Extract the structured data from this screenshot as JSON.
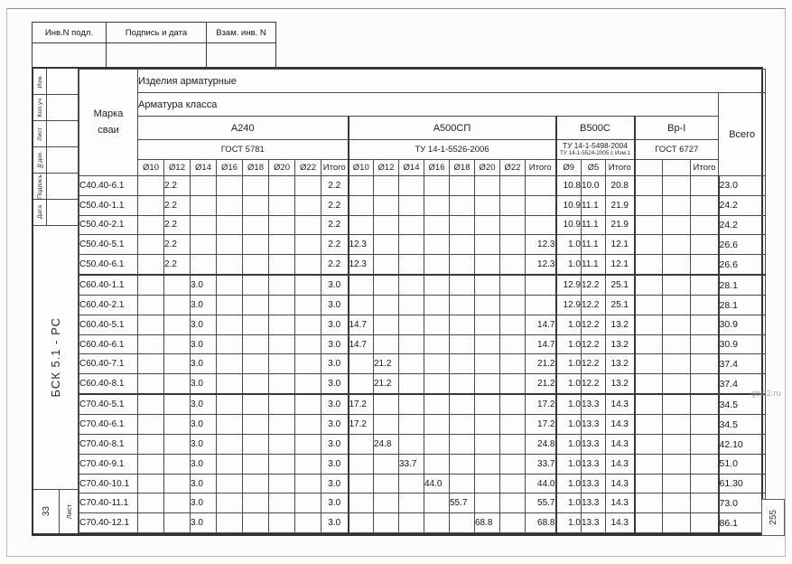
{
  "stamp": {
    "cells": [
      "Инв.N подл.",
      "Подпись и дата",
      "Взам. инв. N"
    ]
  },
  "side_stamp": {
    "labels": [
      "Изм.",
      "Кол.уч",
      "Лист",
      "№док.",
      "Подпись",
      "Дата"
    ],
    "doc_code": "БСК 5.1 - РС",
    "sheet_number": "33",
    "sheet_label": "Лист"
  },
  "page_number": "255",
  "watermark": "gbi22.ru",
  "table": {
    "mark_header_line1": "Марка",
    "mark_header_line2": "сваи",
    "products_header": "Изделия арматурные",
    "class_header": "Арматура класса",
    "total_header": "Всего",
    "groups": [
      {
        "name": "А240",
        "standard": "ГОСТ 5781",
        "standard2": "",
        "cols": [
          "Ø10",
          "Ø12",
          "Ø14",
          "Ø16",
          "Ø18",
          "Ø20",
          "Ø22",
          "Итого"
        ]
      },
      {
        "name": "А500СП",
        "standard": "ТУ 14-1-5526-2006",
        "standard2": "",
        "cols": [
          "Ø10",
          "Ø12",
          "Ø14",
          "Ø16",
          "Ø18",
          "Ø20",
          "Ø22",
          "Итого"
        ]
      },
      {
        "name": "В500С",
        "standard": "ТУ 14-1-5498-2004",
        "standard2": "ТУ 14-1-5524-2005 с Изм.1",
        "cols": [
          "Ø9",
          "Ø5",
          "Итого"
        ]
      },
      {
        "name": "Вр-I",
        "standard": "ГОСТ 6727",
        "standard2": "",
        "cols": [
          "",
          "",
          "Итого"
        ]
      }
    ],
    "thick_after_rows": [
      4,
      10
    ],
    "rows": [
      {
        "mark": "С40.40-6.1",
        "a240": [
          "",
          "2.2",
          "",
          "",
          "",
          "",
          "",
          "2.2"
        ],
        "a500": [
          "",
          "",
          "",
          "",
          "",
          "",
          "",
          ""
        ],
        "b500": [
          "10.8",
          "10.0",
          "20.8"
        ],
        "bp1": [
          "",
          "",
          ""
        ],
        "total": "23.0"
      },
      {
        "mark": "С50.40-1.1",
        "a240": [
          "",
          "2.2",
          "",
          "",
          "",
          "",
          "",
          "2.2"
        ],
        "a500": [
          "",
          "",
          "",
          "",
          "",
          "",
          "",
          ""
        ],
        "b500": [
          "10.9",
          "11.1",
          "21.9"
        ],
        "bp1": [
          "",
          "",
          ""
        ],
        "total": "24.2"
      },
      {
        "mark": "С50.40-2.1",
        "a240": [
          "",
          "2.2",
          "",
          "",
          "",
          "",
          "",
          "2.2"
        ],
        "a500": [
          "",
          "",
          "",
          "",
          "",
          "",
          "",
          ""
        ],
        "b500": [
          "10.9",
          "11.1",
          "21.9"
        ],
        "bp1": [
          "",
          "",
          ""
        ],
        "total": "24.2"
      },
      {
        "mark": "С50.40-5.1",
        "a240": [
          "",
          "2.2",
          "",
          "",
          "",
          "",
          "",
          "2.2"
        ],
        "a500": [
          "12.3",
          "",
          "",
          "",
          "",
          "",
          "",
          "12.3"
        ],
        "b500": [
          "1.0",
          "11.1",
          "12.1"
        ],
        "bp1": [
          "",
          "",
          ""
        ],
        "total": "26.6"
      },
      {
        "mark": "С50.40-6.1",
        "a240": [
          "",
          "2.2",
          "",
          "",
          "",
          "",
          "",
          "2.2"
        ],
        "a500": [
          "12.3",
          "",
          "",
          "",
          "",
          "",
          "",
          "12.3"
        ],
        "b500": [
          "1.0",
          "11.1",
          "12.1"
        ],
        "bp1": [
          "",
          "",
          ""
        ],
        "total": "26.6"
      },
      {
        "mark": "С60.40-1.1",
        "a240": [
          "",
          "",
          "3.0",
          "",
          "",
          "",
          "",
          "3.0"
        ],
        "a500": [
          "",
          "",
          "",
          "",
          "",
          "",
          "",
          ""
        ],
        "b500": [
          "12.9",
          "12.2",
          "25.1"
        ],
        "bp1": [
          "",
          "",
          ""
        ],
        "total": "28.1"
      },
      {
        "mark": "С60.40-2.1",
        "a240": [
          "",
          "",
          "3.0",
          "",
          "",
          "",
          "",
          "3.0"
        ],
        "a500": [
          "",
          "",
          "",
          "",
          "",
          "",
          "",
          ""
        ],
        "b500": [
          "12.9",
          "12.2",
          "25.1"
        ],
        "bp1": [
          "",
          "",
          ""
        ],
        "total": "28.1"
      },
      {
        "mark": "С60.40-5.1",
        "a240": [
          "",
          "",
          "3.0",
          "",
          "",
          "",
          "",
          "3.0"
        ],
        "a500": [
          "14.7",
          "",
          "",
          "",
          "",
          "",
          "",
          "14.7"
        ],
        "b500": [
          "1.0",
          "12.2",
          "13.2"
        ],
        "bp1": [
          "",
          "",
          ""
        ],
        "total": "30.9"
      },
      {
        "mark": "С60.40-6.1",
        "a240": [
          "",
          "",
          "3.0",
          "",
          "",
          "",
          "",
          "3.0"
        ],
        "a500": [
          "14.7",
          "",
          "",
          "",
          "",
          "",
          "",
          "14.7"
        ],
        "b500": [
          "1.0",
          "12.2",
          "13.2"
        ],
        "bp1": [
          "",
          "",
          ""
        ],
        "total": "30.9"
      },
      {
        "mark": "С60.40-7.1",
        "a240": [
          "",
          "",
          "3.0",
          "",
          "",
          "",
          "",
          "3.0"
        ],
        "a500": [
          "",
          "21.2",
          "",
          "",
          "",
          "",
          "",
          "21.2"
        ],
        "b500": [
          "1.0",
          "12.2",
          "13.2"
        ],
        "bp1": [
          "",
          "",
          ""
        ],
        "total": "37.4"
      },
      {
        "mark": "С60.40-8.1",
        "a240": [
          "",
          "",
          "3.0",
          "",
          "",
          "",
          "",
          "3.0"
        ],
        "a500": [
          "",
          "21.2",
          "",
          "",
          "",
          "",
          "",
          "21.2"
        ],
        "b500": [
          "1.0",
          "12.2",
          "13.2"
        ],
        "bp1": [
          "",
          "",
          ""
        ],
        "total": "37.4"
      },
      {
        "mark": "С70.40-5.1",
        "a240": [
          "",
          "",
          "3.0",
          "",
          "",
          "",
          "",
          "3.0"
        ],
        "a500": [
          "17.2",
          "",
          "",
          "",
          "",
          "",
          "",
          "17.2"
        ],
        "b500": [
          "1.0",
          "13.3",
          "14.3"
        ],
        "bp1": [
          "",
          "",
          ""
        ],
        "total": "34.5"
      },
      {
        "mark": "С70.40-6.1",
        "a240": [
          "",
          "",
          "3.0",
          "",
          "",
          "",
          "",
          "3.0"
        ],
        "a500": [
          "17.2",
          "",
          "",
          "",
          "",
          "",
          "",
          "17.2"
        ],
        "b500": [
          "1.0",
          "13.3",
          "14.3"
        ],
        "bp1": [
          "",
          "",
          ""
        ],
        "total": "34.5"
      },
      {
        "mark": "С70.40-8.1",
        "a240": [
          "",
          "",
          "3.0",
          "",
          "",
          "",
          "",
          "3.0"
        ],
        "a500": [
          "",
          "24.8",
          "",
          "",
          "",
          "",
          "",
          "24.8"
        ],
        "b500": [
          "1.0",
          "13.3",
          "14.3"
        ],
        "bp1": [
          "",
          "",
          ""
        ],
        "total": "42.10"
      },
      {
        "mark": "С70.40-9.1",
        "a240": [
          "",
          "",
          "3.0",
          "",
          "",
          "",
          "",
          "3.0"
        ],
        "a500": [
          "",
          "",
          "33.7",
          "",
          "",
          "",
          "",
          "33.7"
        ],
        "b500": [
          "1.0",
          "13.3",
          "14.3"
        ],
        "bp1": [
          "",
          "",
          ""
        ],
        "total": "51.0"
      },
      {
        "mark": "С70.40-10.1",
        "a240": [
          "",
          "",
          "3.0",
          "",
          "",
          "",
          "",
          "3.0"
        ],
        "a500": [
          "",
          "",
          "",
          "44.0",
          "",
          "",
          "",
          "44.0"
        ],
        "b500": [
          "1.0",
          "13.3",
          "14.3"
        ],
        "bp1": [
          "",
          "",
          ""
        ],
        "total": "61.30"
      },
      {
        "mark": "С70.40-11.1",
        "a240": [
          "",
          "",
          "3.0",
          "",
          "",
          "",
          "",
          "3.0"
        ],
        "a500": [
          "",
          "",
          "",
          "",
          "55.7",
          "",
          "",
          "55.7"
        ],
        "b500": [
          "1.0",
          "13.3",
          "14.3"
        ],
        "bp1": [
          "",
          "",
          ""
        ],
        "total": "73.0"
      },
      {
        "mark": "С70.40-12.1",
        "a240": [
          "",
          "",
          "3.0",
          "",
          "",
          "",
          "",
          "3.0"
        ],
        "a500": [
          "",
          "",
          "",
          "",
          "",
          "68.8",
          "",
          "68.8"
        ],
        "b500": [
          "1.0",
          "13.3",
          "14.3"
        ],
        "bp1": [
          "",
          "",
          ""
        ],
        "total": "86.1"
      }
    ]
  }
}
